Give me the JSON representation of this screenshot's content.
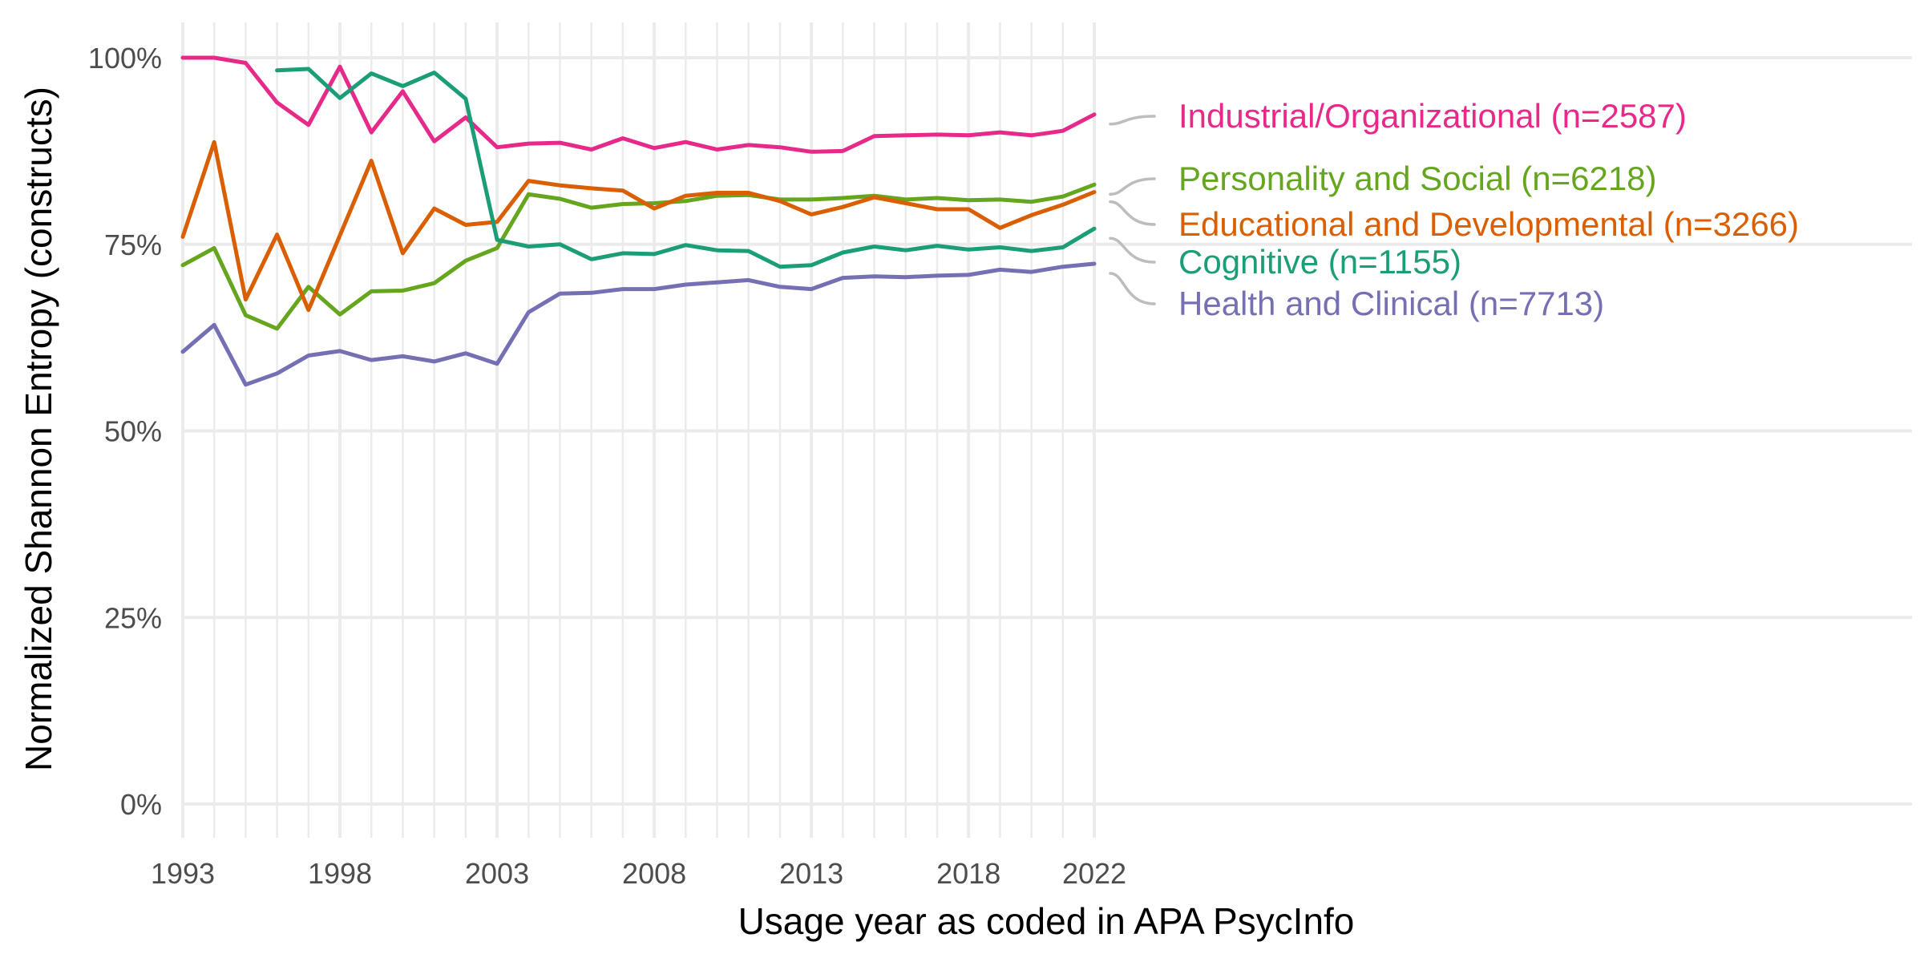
{
  "chart_data": {
    "type": "line",
    "title": "",
    "xlabel": "Usage year as coded in APA PsycInfo",
    "ylabel": "Normalized Shannon Entropy (constructs)",
    "xlim": [
      1993,
      2022
    ],
    "ylim": [
      0,
      1
    ],
    "x_ticks": [
      1993,
      1998,
      2003,
      2008,
      2013,
      2018,
      2022
    ],
    "x_tick_labels": [
      "1993",
      "1998",
      "2003",
      "2008",
      "2013",
      "2018",
      "2022"
    ],
    "y_ticks": [
      0,
      0.25,
      0.5,
      0.75,
      1.0
    ],
    "y_tick_labels": [
      "0%",
      "25%",
      "50%",
      "75%",
      "100%"
    ],
    "grid": true,
    "legend": "direct labels at right",
    "series": [
      {
        "name": "Industrial/Organizational (n=2587)",
        "color": "#e7298a",
        "x": [
          1993,
          1994,
          1995,
          1996,
          1997,
          1998,
          1999,
          2000,
          2001,
          2002,
          2003,
          2004,
          2005,
          2006,
          2007,
          2008,
          2009,
          2010,
          2011,
          2012,
          2013,
          2014,
          2015,
          2016,
          2017,
          2018,
          2019,
          2020,
          2021,
          2022
        ],
        "values": [
          1.0,
          1.0,
          0.993,
          0.94,
          0.91,
          0.988,
          0.9,
          0.955,
          0.888,
          0.92,
          0.88,
          0.885,
          0.886,
          0.877,
          0.892,
          0.879,
          0.887,
          0.877,
          0.883,
          0.88,
          0.874,
          0.875,
          0.895,
          0.896,
          0.897,
          0.896,
          0.9,
          0.896,
          0.902,
          0.924
        ]
      },
      {
        "name": "Personality and Social (n=6218)",
        "color": "#66a61e",
        "x": [
          1993,
          1994,
          1995,
          1996,
          1997,
          1998,
          1999,
          2000,
          2001,
          2002,
          2003,
          2004,
          2005,
          2006,
          2007,
          2008,
          2009,
          2010,
          2011,
          2012,
          2013,
          2014,
          2015,
          2016,
          2017,
          2018,
          2019,
          2020,
          2021,
          2022
        ],
        "values": [
          0.722,
          0.745,
          0.655,
          0.637,
          0.693,
          0.656,
          0.687,
          0.688,
          0.698,
          0.728,
          0.745,
          0.817,
          0.811,
          0.799,
          0.804,
          0.805,
          0.808,
          0.815,
          0.816,
          0.81,
          0.81,
          0.812,
          0.815,
          0.81,
          0.812,
          0.809,
          0.81,
          0.807,
          0.814,
          0.83
        ]
      },
      {
        "name": "Educational and Developmental (n=3266)",
        "color": "#d95f02",
        "x": [
          1993,
          1994,
          1995,
          1996,
          1997,
          1998,
          1999,
          2000,
          2001,
          2002,
          2003,
          2004,
          2005,
          2006,
          2007,
          2008,
          2009,
          2010,
          2011,
          2012,
          2013,
          2014,
          2015,
          2016,
          2017,
          2018,
          2019,
          2020,
          2021,
          2022
        ],
        "values": [
          0.76,
          0.887,
          0.676,
          0.763,
          0.662,
          0.762,
          0.862,
          0.738,
          0.798,
          0.776,
          0.78,
          0.835,
          0.829,
          0.825,
          0.822,
          0.798,
          0.815,
          0.819,
          0.819,
          0.808,
          0.79,
          0.8,
          0.813,
          0.805,
          0.797,
          0.797,
          0.772,
          0.789,
          0.803,
          0.82
        ]
      },
      {
        "name": "Cognitive (n=1155)",
        "color": "#1b9e77",
        "x": [
          1996,
          1997,
          1998,
          1999,
          2000,
          2001,
          2002,
          2003,
          2004,
          2005,
          2006,
          2007,
          2008,
          2009,
          2010,
          2011,
          2012,
          2013,
          2014,
          2015,
          2016,
          2017,
          2018,
          2019,
          2020,
          2021,
          2022
        ],
        "values": [
          0.983,
          0.985,
          0.946,
          0.979,
          0.962,
          0.98,
          0.945,
          0.756,
          0.747,
          0.75,
          0.73,
          0.738,
          0.737,
          0.749,
          0.742,
          0.741,
          0.72,
          0.722,
          0.739,
          0.747,
          0.742,
          0.748,
          0.743,
          0.746,
          0.741,
          0.746,
          0.771
        ]
      },
      {
        "name": "Health and Clinical (n=7713)",
        "color": "#7570b3",
        "x": [
          1993,
          1994,
          1995,
          1996,
          1997,
          1998,
          1999,
          2000,
          2001,
          2002,
          2003,
          2004,
          2005,
          2006,
          2007,
          2008,
          2009,
          2010,
          2011,
          2012,
          2013,
          2014,
          2015,
          2016,
          2017,
          2018,
          2019,
          2020,
          2021,
          2022
        ],
        "values": [
          0.606,
          0.642,
          0.562,
          0.577,
          0.601,
          0.607,
          0.595,
          0.6,
          0.593,
          0.604,
          0.59,
          0.659,
          0.684,
          0.685,
          0.69,
          0.69,
          0.696,
          0.699,
          0.702,
          0.693,
          0.69,
          0.705,
          0.707,
          0.706,
          0.708,
          0.709,
          0.716,
          0.713,
          0.72,
          0.724
        ]
      }
    ]
  }
}
